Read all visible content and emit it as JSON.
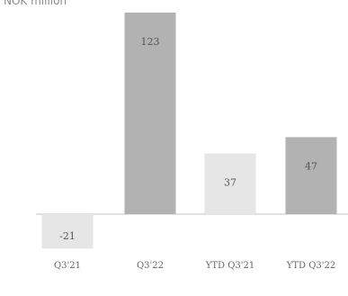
{
  "chart_data": {
    "type": "bar",
    "unit_label": "NOK million",
    "categories": [
      "Q3'21",
      "Q3'22",
      "YTD Q3'21",
      "YTD Q3'22"
    ],
    "values": [
      -21,
      123,
      37,
      47
    ],
    "data_labels": [
      "-21",
      "123",
      "37",
      "47"
    ],
    "bar_colors": [
      "#e6e6e6",
      "#b2b2b2",
      "#e6e6e6",
      "#b2b2b2"
    ],
    "baseline_color": "#d8d8d8",
    "label_color": "#555555",
    "category_color": "#666666",
    "ylim": [
      -21,
      123
    ],
    "grid": false,
    "legend": "none"
  }
}
